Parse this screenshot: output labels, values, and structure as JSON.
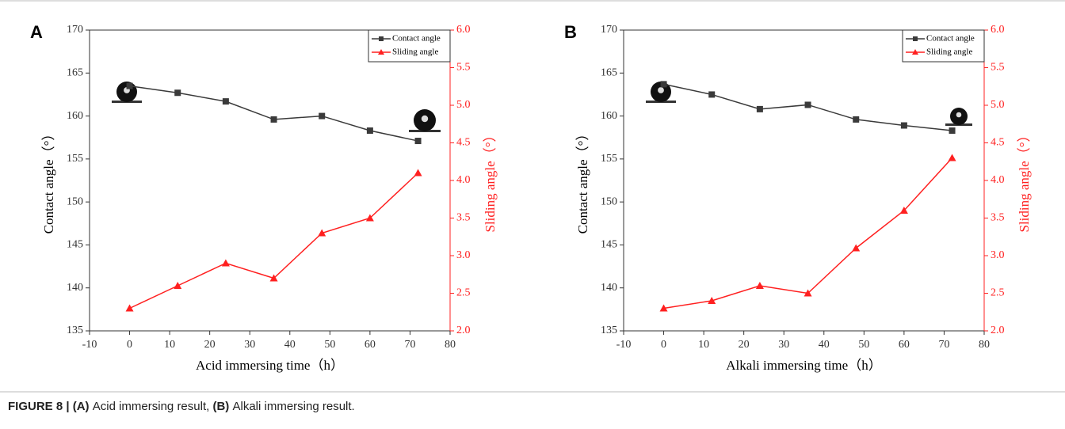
{
  "chart_data": [
    {
      "type": "line",
      "panel": "A",
      "x_label": "Acid immersing time（h）",
      "y_label": "Contact angle（°）",
      "y2_label": "Sliding angle（°）",
      "x": [
        0,
        12,
        24,
        36,
        48,
        60,
        72
      ],
      "series": [
        {
          "name": "Contact angle",
          "color": "#3a3a3a",
          "marker": "square",
          "values": [
            163.5,
            162.7,
            161.7,
            159.6,
            160.0,
            158.3,
            157.1
          ]
        },
        {
          "name": "Sliding angle",
          "color": "#ff2020",
          "marker": "triangle",
          "axis": "y2",
          "values": [
            2.3,
            2.6,
            2.9,
            2.7,
            3.3,
            3.5,
            4.1
          ]
        }
      ],
      "xlim": [
        -10,
        80
      ],
      "xticks": [
        -10,
        0,
        10,
        20,
        30,
        40,
        50,
        60,
        70,
        80
      ],
      "ylim": [
        135,
        170
      ],
      "yticks": [
        135,
        140,
        145,
        150,
        155,
        160,
        165,
        170
      ],
      "y2lim": [
        2,
        6
      ],
      "y2ticks": [
        {
          "value": 2,
          "label": "2.0"
        },
        2.5,
        {
          "value": 3,
          "label": "3.0"
        },
        3.5,
        {
          "value": 4,
          "label": "4.0"
        },
        4.5,
        {
          "value": 5,
          "label": "5.0"
        },
        5.5,
        {
          "value": 6,
          "label": "6.0"
        }
      ],
      "legend": "upper right"
    },
    {
      "type": "line",
      "panel": "B",
      "x_label": "Alkali immersing time（h）",
      "y_label": "Contact angle（°）",
      "y2_label": "Sliding angle（°）",
      "x": [
        0,
        12,
        24,
        36,
        48,
        60,
        72
      ],
      "series": [
        {
          "name": "Contact angle",
          "color": "#3a3a3a",
          "marker": "square",
          "values": [
            163.7,
            162.5,
            160.8,
            161.3,
            159.6,
            158.9,
            158.3
          ]
        },
        {
          "name": "Sliding angle",
          "color": "#ff2020",
          "marker": "triangle",
          "axis": "y2",
          "values": [
            2.3,
            2.4,
            2.6,
            2.5,
            3.1,
            3.6,
            4.3
          ]
        }
      ],
      "xlim": [
        -10,
        80
      ],
      "xticks": [
        -10,
        0,
        10,
        20,
        30,
        40,
        50,
        60,
        70,
        80
      ],
      "ylim": [
        135,
        170
      ],
      "yticks": [
        135,
        140,
        145,
        150,
        155,
        160,
        165,
        170
      ],
      "y2lim": [
        2,
        6
      ],
      "y2ticks": [
        {
          "value": 2,
          "label": "2.0"
        },
        2.5,
        {
          "value": 3,
          "label": "3.0"
        },
        3.5,
        {
          "value": 4,
          "label": "4.0"
        },
        4.5,
        {
          "value": 5,
          "label": "5.0"
        },
        5.5,
        {
          "value": 6,
          "label": "6.0"
        }
      ],
      "legend": "upper right"
    }
  ],
  "caption": [
    {
      "text": "FIGURE 8 |",
      "bold": true
    },
    {
      "text": "(A)",
      "bold": true
    },
    {
      "text": "Acid immersing result,",
      "bold": false
    },
    {
      "text": "(B)",
      "bold": true
    },
    {
      "text": "Alkali immersing result.",
      "bold": false
    }
  ]
}
